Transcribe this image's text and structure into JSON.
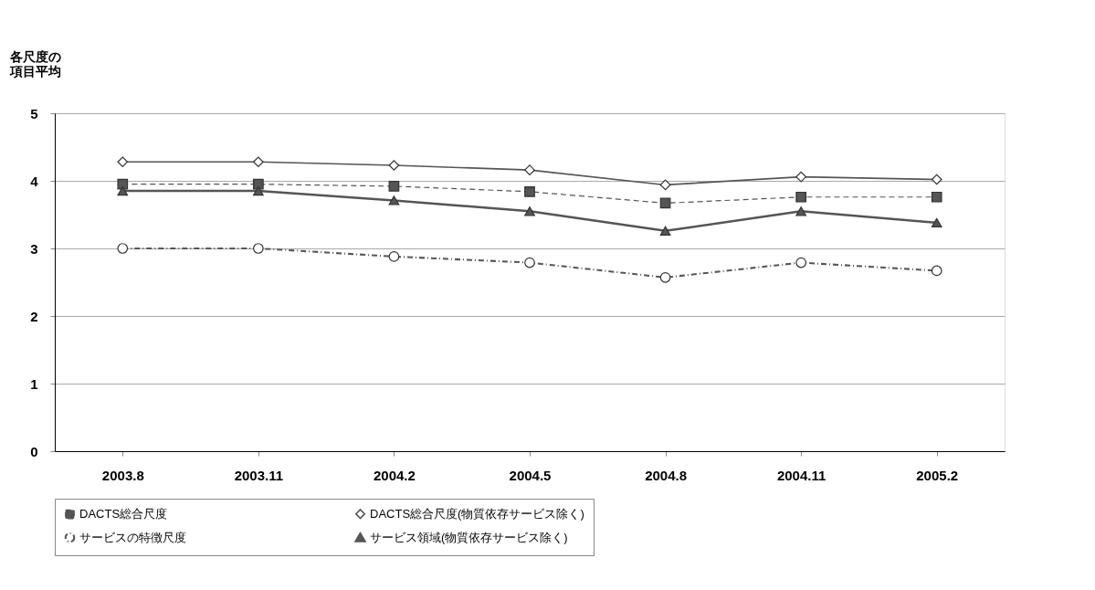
{
  "chart_data": {
    "type": "line",
    "ylabel": "各尺度の項目平均",
    "categories": [
      "2003.8",
      "2003.11",
      "2004.2",
      "2004.5",
      "2004.8",
      "2004.11",
      "2005.2"
    ],
    "ylim": [
      0,
      5
    ],
    "yticks": [
      0,
      1,
      2,
      3,
      4,
      5
    ],
    "grid": "y",
    "legend": "bottom",
    "series": [
      {
        "name": "DACTS総合尺度",
        "color": "#555555",
        "marker": "square",
        "line_style": "dashed",
        "values": [
          3.95,
          3.95,
          3.92,
          3.84,
          3.67,
          3.76,
          3.76
        ]
      },
      {
        "name": "DACTS総合尺度(物質依存サービス除く)",
        "color": "#555555",
        "marker": "diamond",
        "line_style": "solid",
        "values": [
          4.28,
          4.28,
          4.23,
          4.16,
          3.94,
          4.06,
          4.02
        ]
      },
      {
        "name": "サービスの特徴尺度",
        "color": "#555555",
        "marker": "circle",
        "line_style": "dotted",
        "values": [
          3.0,
          3.0,
          2.88,
          2.79,
          2.57,
          2.79,
          2.67
        ]
      },
      {
        "name": "サービス領域(物質依存サービス除く)",
        "color": "#555555",
        "marker": "triangle",
        "line_style": "solid",
        "values": [
          3.85,
          3.85,
          3.71,
          3.55,
          3.26,
          3.55,
          3.38
        ]
      }
    ]
  }
}
